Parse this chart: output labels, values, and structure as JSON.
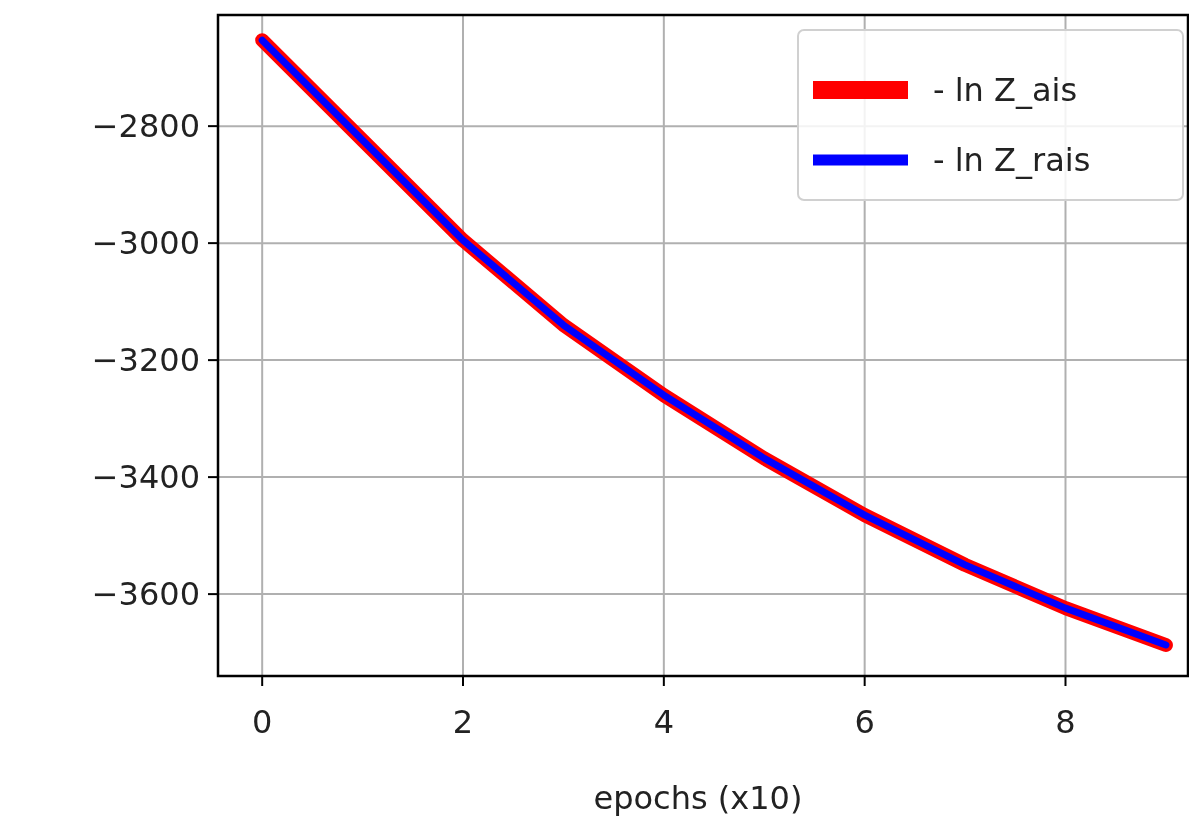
{
  "chart_data": {
    "type": "line",
    "xlabel": "epochs (x10)",
    "x": [
      0,
      1,
      2,
      3,
      4,
      5,
      6,
      7,
      8,
      9
    ],
    "series": [
      {
        "name": "- ln Z_ais",
        "color": "#ff0000",
        "values": [
          -2653,
          -2824,
          -2995,
          -3140,
          -3260,
          -3368,
          -3465,
          -3550,
          -3624,
          -3687
        ]
      },
      {
        "name": "- ln Z_rais",
        "color": "#0000ff",
        "values": [
          -2653,
          -2824,
          -2995,
          -3140,
          -3260,
          -3368,
          -3465,
          -3550,
          -3624,
          -3687
        ]
      }
    ],
    "xlim": [
      -0.44,
      9.22
    ],
    "xticks": [
      0,
      2,
      4,
      6,
      8
    ],
    "ylim": [
      -3740,
      -2610
    ],
    "yticks": [
      -3600,
      -3400,
      -3200,
      -3000,
      -2800
    ],
    "grid": true,
    "legend": "top right"
  }
}
